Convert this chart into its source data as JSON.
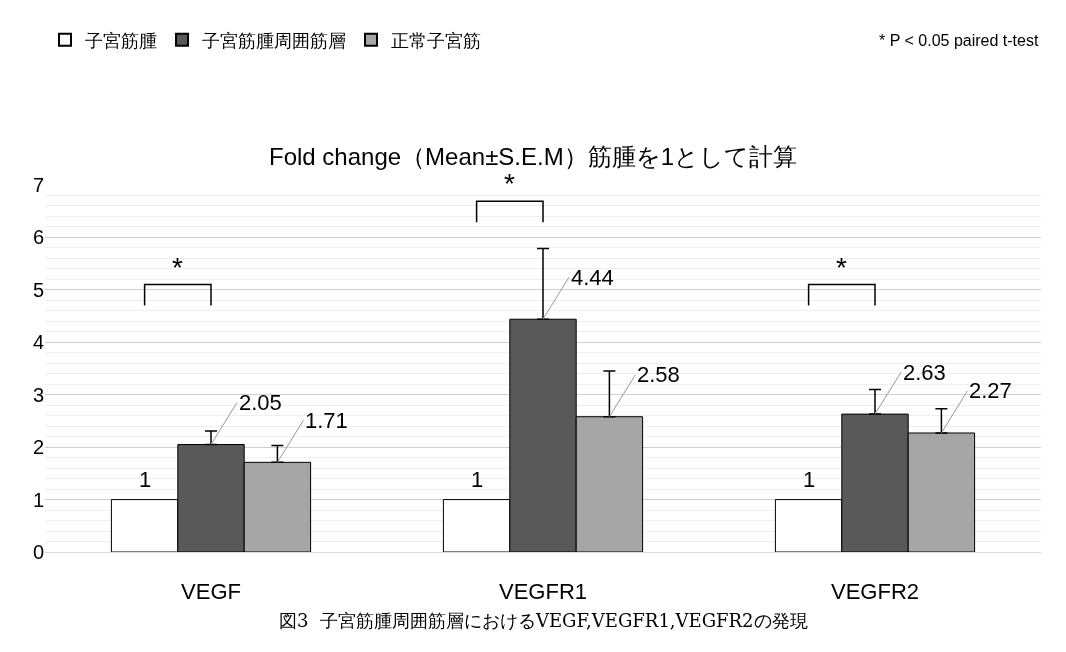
{
  "chart_data": {
    "type": "bar",
    "title": "Fold change（Mean±S.E.M）筋腫を1として計算",
    "categories": [
      "VEGF",
      "VEGFR1",
      "VEGFR2"
    ],
    "series": [
      {
        "name": "子宮筋腫",
        "color": "#ffffff",
        "values": [
          1,
          1,
          1
        ]
      },
      {
        "name": "子宮筋腫周囲筋層",
        "color": "#595959",
        "values": [
          2.05,
          4.44,
          2.63
        ],
        "errors": [
          [
            2.05,
            2.31
          ],
          [
            4.44,
            5.79
          ],
          [
            2.63,
            3.1
          ]
        ]
      },
      {
        "name": "正常子宮筋",
        "color": "#a6a6a6",
        "values": [
          1.71,
          2.58,
          2.27
        ],
        "errors": [
          [
            1.71,
            2.03
          ],
          [
            2.58,
            3.45
          ],
          [
            2.27,
            2.73
          ]
        ]
      }
    ],
    "ylim": [
      0,
      7
    ],
    "yticks": [
      0,
      1,
      2,
      3,
      4,
      5,
      6,
      7
    ],
    "grid": "y",
    "legend": "top",
    "data_labels": true,
    "annotations": [
      "* P < 0.05 paired t-test",
      "図3  子宮筋腫周囲筋層におけるVEGF,VEGFR1,VEGFR2の発現",
      "*",
      "*",
      "*"
    ]
  }
}
